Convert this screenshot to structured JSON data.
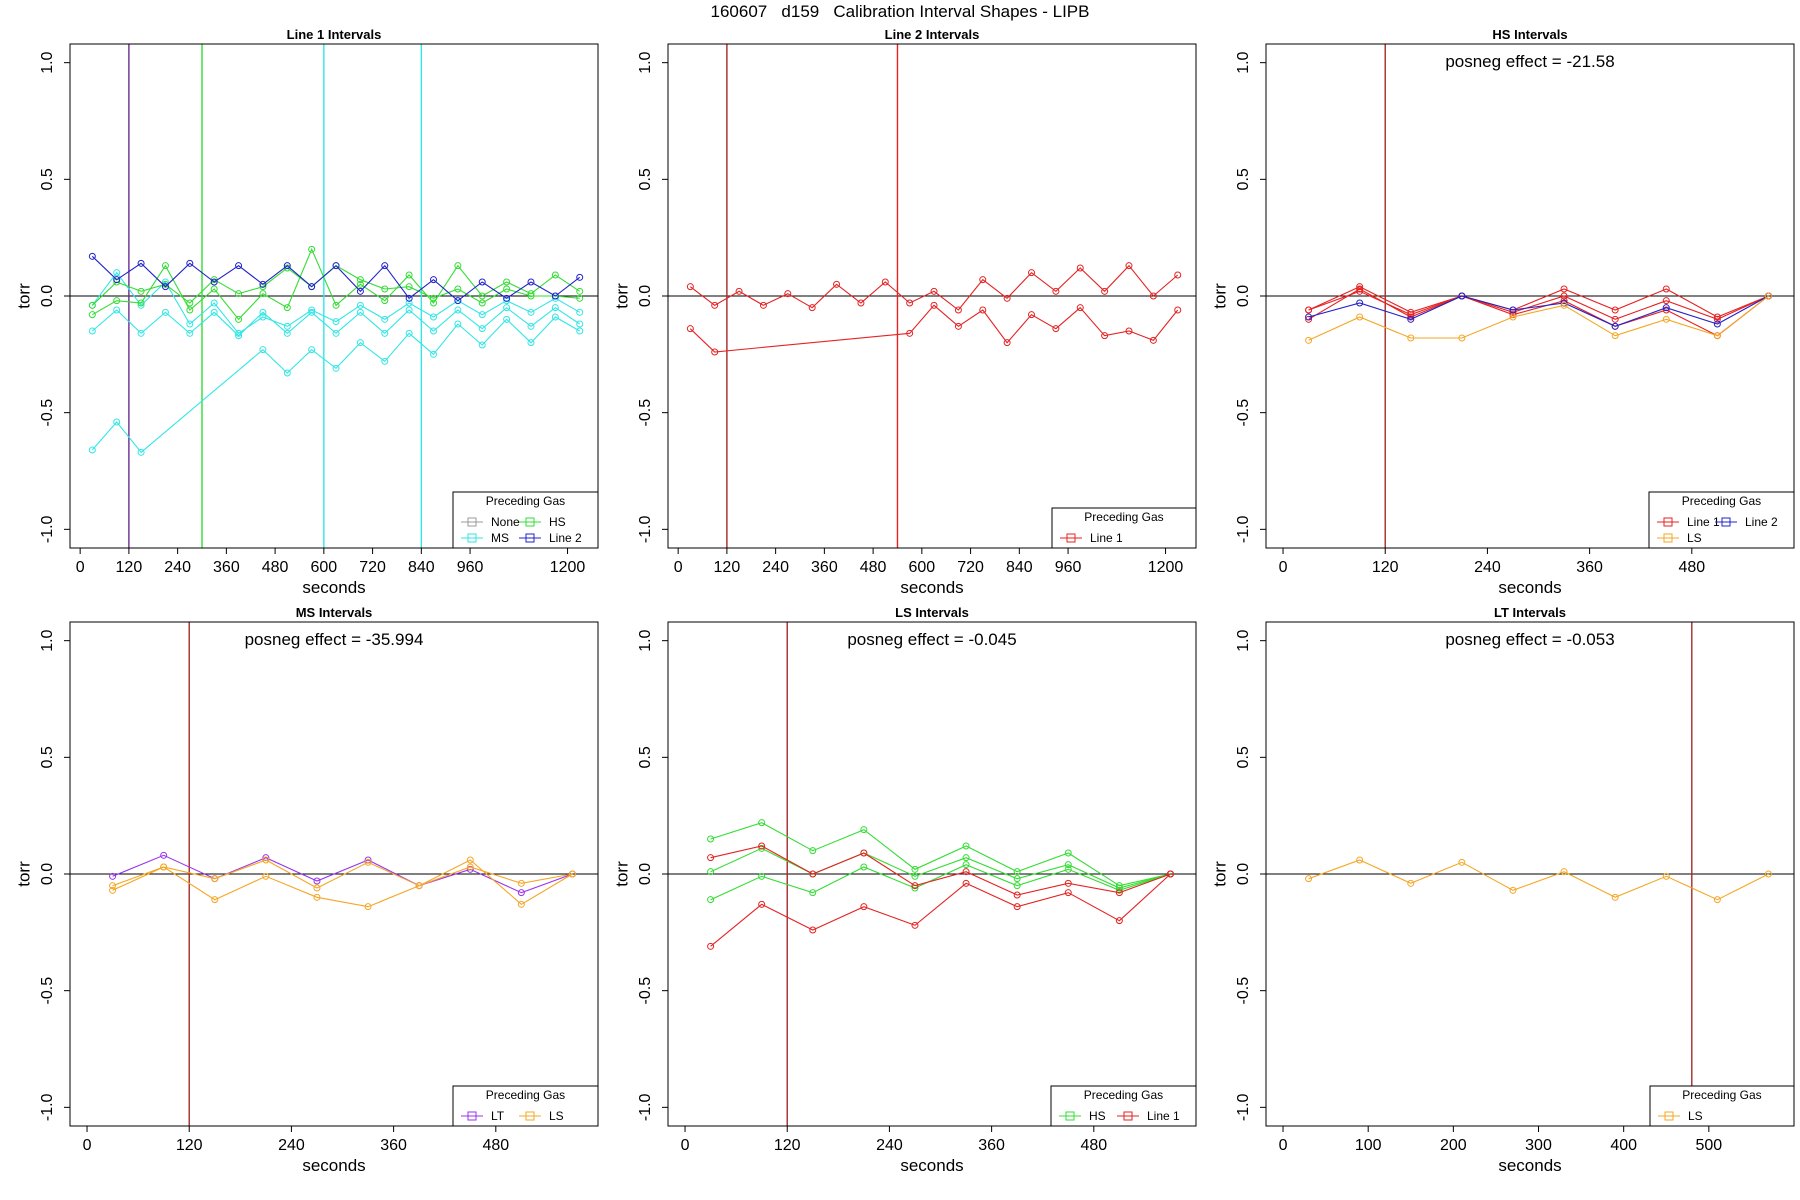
{
  "title": "160607   d159   Calibration Interval Shapes - LIPB",
  "colors": {
    "None": "#999999",
    "MS": "#33e6e6",
    "HS": "#33dd33",
    "Line 2": "#2222cc",
    "Line 1": "#e62222",
    "LS": "#f5a623",
    "LT": "#9933ee",
    "purple_line": "#6b2b8f",
    "darkred_line": "#a52a2a"
  },
  "chart_data": [
    {
      "type": "line",
      "title": "Line 1 Intervals",
      "xlabel": "seconds",
      "ylabel": "torr",
      "xlim": [
        -25,
        1275
      ],
      "ylim": [
        -1.08,
        1.08
      ],
      "xticks": [
        0,
        120,
        240,
        360,
        480,
        600,
        720,
        840,
        960,
        1200
      ],
      "yticks": [
        -1.0,
        -0.5,
        0.0,
        0.5,
        1.0
      ],
      "vlines": [
        {
          "x": 120,
          "color": "purple_line"
        },
        {
          "x": 300,
          "color": "HS"
        },
        {
          "x": 600,
          "color": "MS"
        },
        {
          "x": 840,
          "color": "MS"
        }
      ],
      "legend": {
        "title": "Preceding Gas",
        "position": "bottom-right",
        "columns": 2,
        "items": [
          "None",
          "HS",
          "MS",
          "Line 2"
        ]
      },
      "series": [
        {
          "name": "MS",
          "x": [
            30,
            90,
            150,
            450,
            510,
            570,
            630,
            690,
            750,
            810,
            870,
            930,
            990,
            1050,
            1110,
            1170,
            1230
          ],
          "y": [
            -0.66,
            -0.54,
            -0.67,
            -0.23,
            -0.33,
            -0.23,
            -0.31,
            -0.2,
            -0.28,
            -0.16,
            -0.25,
            -0.12,
            -0.21,
            -0.1,
            -0.2,
            -0.09,
            -0.15
          ]
        },
        {
          "name": "MS",
          "x": [
            30,
            90,
            150,
            210,
            270,
            330,
            390,
            450,
            510,
            570,
            630,
            690,
            750,
            810,
            870,
            930,
            990,
            1050,
            1110,
            1170,
            1230
          ],
          "y": [
            -0.15,
            -0.06,
            -0.16,
            -0.07,
            -0.16,
            -0.07,
            -0.17,
            -0.07,
            -0.16,
            -0.07,
            -0.16,
            -0.07,
            -0.16,
            -0.06,
            -0.15,
            -0.06,
            -0.14,
            -0.05,
            -0.13,
            -0.05,
            -0.12
          ]
        },
        {
          "name": "MS",
          "x": [
            30,
            90,
            150,
            210,
            270,
            330,
            390,
            450,
            510,
            570,
            630,
            690,
            750,
            810,
            870,
            930,
            990,
            1050,
            1110,
            1170,
            1230
          ],
          "y": [
            -0.04,
            0.1,
            -0.04,
            0.06,
            -0.12,
            -0.03,
            -0.16,
            -0.09,
            -0.13,
            -0.06,
            -0.11,
            -0.04,
            -0.1,
            -0.03,
            -0.09,
            -0.02,
            -0.08,
            -0.02,
            -0.07,
            -0.01,
            -0.07
          ]
        },
        {
          "name": "HS",
          "x": [
            30,
            90,
            150,
            210,
            270,
            330,
            390,
            450,
            510,
            570,
            630,
            690,
            750,
            810,
            870,
            930,
            990,
            1050,
            1110,
            1170,
            1230
          ],
          "y": [
            -0.08,
            -0.02,
            -0.03,
            0.13,
            -0.06,
            0.03,
            -0.1,
            0.01,
            -0.05,
            0.2,
            -0.04,
            0.05,
            -0.02,
            0.09,
            -0.03,
            0.13,
            0.0,
            0.06,
            0.01,
            0.09,
            0.02
          ]
        },
        {
          "name": "HS",
          "x": [
            30,
            90,
            150,
            210,
            270,
            330,
            390,
            450,
            510,
            570,
            630,
            690,
            750,
            810,
            870,
            930,
            990,
            1050,
            1110,
            1170,
            1230
          ],
          "y": [
            -0.04,
            0.06,
            0.02,
            0.05,
            -0.03,
            0.07,
            0.01,
            0.04,
            0.12,
            0.04,
            0.13,
            0.07,
            0.03,
            0.04,
            -0.01,
            0.03,
            -0.03,
            0.03,
            0.0,
            0.0,
            -0.01
          ]
        },
        {
          "name": "Line 2",
          "x": [
            30,
            90,
            150,
            210,
            270,
            330,
            390,
            450,
            510,
            570,
            630,
            690,
            750,
            810,
            870,
            930,
            990,
            1050,
            1110,
            1170,
            1230
          ],
          "y": [
            0.17,
            0.07,
            0.14,
            0.04,
            0.14,
            0.06,
            0.13,
            0.05,
            0.13,
            0.04,
            0.13,
            0.02,
            0.13,
            -0.01,
            0.07,
            -0.02,
            0.06,
            -0.01,
            0.06,
            0.0,
            0.08
          ]
        }
      ]
    },
    {
      "type": "line",
      "title": "Line 2 Intervals",
      "xlabel": "seconds",
      "ylabel": "torr",
      "xlim": [
        -25,
        1275
      ],
      "ylim": [
        -1.08,
        1.08
      ],
      "xticks": [
        0,
        120,
        240,
        360,
        480,
        600,
        720,
        840,
        960,
        1200
      ],
      "yticks": [
        -1.0,
        -0.5,
        0.0,
        0.5,
        1.0
      ],
      "vlines": [
        {
          "x": 120,
          "color": "darkred_line"
        },
        {
          "x": 540,
          "color": "Line 1"
        }
      ],
      "legend": {
        "title": "Preceding Gas",
        "position": "bottom-right",
        "columns": 1,
        "items": [
          "Line 1"
        ]
      },
      "series": [
        {
          "name": "Line 1",
          "x": [
            30,
            90,
            150,
            210,
            270,
            330,
            390,
            450,
            510,
            570,
            630,
            690,
            750,
            810,
            870,
            930,
            990,
            1050,
            1110,
            1170,
            1230
          ],
          "y": [
            0.04,
            -0.04,
            0.02,
            -0.04,
            0.01,
            -0.05,
            0.05,
            -0.03,
            0.06,
            -0.03,
            0.02,
            -0.06,
            0.07,
            -0.01,
            0.1,
            0.02,
            0.12,
            0.02,
            0.13,
            0.0,
            0.09
          ]
        },
        {
          "name": "Line 1",
          "x": [
            30,
            90,
            570,
            630,
            690,
            750,
            810,
            870,
            930,
            990,
            1050,
            1110,
            1170,
            1230
          ],
          "y": [
            -0.14,
            -0.24,
            -0.16,
            -0.04,
            -0.13,
            -0.06,
            -0.2,
            -0.08,
            -0.14,
            -0.05,
            -0.17,
            -0.15,
            -0.19,
            -0.06
          ]
        }
      ]
    },
    {
      "type": "line",
      "title": "HS Intervals",
      "annotation": "posneg effect = -21.58",
      "xlabel": "seconds",
      "ylabel": "torr",
      "xlim": [
        -20,
        600
      ],
      "ylim": [
        -1.08,
        1.08
      ],
      "xticks": [
        0,
        120,
        240,
        360,
        480
      ],
      "yticks": [
        -1.0,
        -0.5,
        0.0,
        0.5,
        1.0
      ],
      "vlines": [
        {
          "x": 120,
          "color": "darkred_line"
        }
      ],
      "legend": {
        "title": "Preceding Gas",
        "position": "bottom-right",
        "columns": 2,
        "items": [
          "Line 1",
          "Line 2",
          "LS"
        ]
      },
      "series": [
        {
          "name": "Line 1",
          "x": [
            30,
            90,
            150,
            210,
            270,
            330,
            390,
            450,
            510,
            570
          ],
          "y": [
            -0.06,
            0.04,
            -0.07,
            0.0,
            -0.06,
            0.03,
            -0.06,
            0.03,
            -0.09,
            0.0
          ]
        },
        {
          "name": "Line 1",
          "x": [
            30,
            90,
            150,
            210,
            270,
            330,
            390,
            450,
            510,
            570
          ],
          "y": [
            -0.06,
            0.02,
            -0.08,
            0.0,
            -0.07,
            0.0,
            -0.1,
            -0.02,
            -0.1,
            0.0
          ]
        },
        {
          "name": "Line 1",
          "x": [
            30,
            90,
            150,
            210,
            270,
            330,
            390,
            450,
            510,
            570
          ],
          "y": [
            -0.1,
            0.03,
            -0.09,
            0.0,
            -0.08,
            -0.02,
            -0.13,
            -0.06,
            -0.17,
            0.0
          ]
        },
        {
          "name": "Line 2",
          "x": [
            30,
            90,
            150,
            210,
            270,
            330,
            390,
            450,
            510,
            570
          ],
          "y": [
            -0.09,
            -0.03,
            -0.1,
            0.0,
            -0.06,
            -0.03,
            -0.13,
            -0.05,
            -0.12,
            0.0
          ]
        },
        {
          "name": "LS",
          "x": [
            30,
            90,
            150,
            210,
            270,
            330,
            390,
            450,
            510,
            570
          ],
          "y": [
            -0.19,
            -0.09,
            -0.18,
            -0.18,
            -0.09,
            -0.04,
            -0.17,
            -0.1,
            -0.17,
            0.0
          ]
        }
      ]
    },
    {
      "type": "line",
      "title": "MS Intervals",
      "annotation": "posneg effect = -35.994",
      "xlabel": "seconds",
      "ylabel": "torr",
      "xlim": [
        -20,
        600
      ],
      "ylim": [
        -1.08,
        1.08
      ],
      "xticks": [
        0,
        120,
        240,
        360,
        480
      ],
      "yticks": [
        -1.0,
        -0.5,
        0.0,
        0.5,
        1.0
      ],
      "vlines": [
        {
          "x": 120,
          "color": "darkred_line"
        }
      ],
      "legend": {
        "title": "Preceding Gas",
        "position": "bottom-right",
        "columns": 2,
        "items": [
          "LT",
          "LS"
        ]
      },
      "series": [
        {
          "name": "LT",
          "x": [
            30,
            90,
            150,
            210,
            270,
            330,
            390,
            450,
            510,
            570
          ],
          "y": [
            -0.01,
            0.08,
            -0.02,
            0.07,
            -0.03,
            0.06,
            -0.05,
            0.02,
            -0.08,
            0.0
          ]
        },
        {
          "name": "LS",
          "x": [
            30,
            90,
            150,
            210,
            270,
            330,
            390,
            450,
            510,
            570
          ],
          "y": [
            -0.07,
            0.03,
            -0.11,
            -0.01,
            -0.1,
            -0.14,
            -0.05,
            0.06,
            -0.13,
            0.0
          ]
        },
        {
          "name": "LS",
          "x": [
            30,
            90,
            150,
            210,
            270,
            330,
            390,
            450,
            510,
            570
          ],
          "y": [
            -0.05,
            0.03,
            -0.02,
            0.06,
            -0.06,
            0.05,
            -0.05,
            0.03,
            -0.04,
            0.0
          ]
        }
      ]
    },
    {
      "type": "line",
      "title": "LS Intervals",
      "annotation": "posneg effect = -0.045",
      "xlabel": "seconds",
      "ylabel": "torr",
      "xlim": [
        -20,
        600
      ],
      "ylim": [
        -1.08,
        1.08
      ],
      "xticks": [
        0,
        120,
        240,
        360,
        480
      ],
      "yticks": [
        -1.0,
        -0.5,
        0.0,
        0.5,
        1.0
      ],
      "vlines": [
        {
          "x": 120,
          "color": "darkred_line"
        }
      ],
      "legend": {
        "title": "Preceding Gas",
        "position": "bottom-right",
        "columns": 2,
        "items": [
          "HS",
          "Line 1"
        ]
      },
      "series": [
        {
          "name": "HS",
          "x": [
            30,
            90,
            150,
            210,
            270,
            330,
            390,
            450,
            510,
            570
          ],
          "y": [
            0.15,
            0.22,
            0.1,
            0.19,
            0.02,
            0.12,
            0.01,
            0.09,
            -0.05,
            0.0
          ]
        },
        {
          "name": "HS",
          "x": [
            30,
            90,
            150,
            210,
            270,
            330,
            390,
            450,
            510,
            570
          ],
          "y": [
            0.01,
            0.11,
            0.0,
            0.09,
            -0.01,
            0.07,
            -0.02,
            0.04,
            -0.06,
            0.0
          ]
        },
        {
          "name": "HS",
          "x": [
            30,
            90,
            150,
            210,
            270,
            330,
            390,
            450,
            510,
            570
          ],
          "y": [
            -0.11,
            -0.01,
            -0.08,
            0.03,
            -0.06,
            0.04,
            -0.05,
            0.02,
            -0.07,
            0.0
          ]
        },
        {
          "name": "Line 1",
          "x": [
            30,
            90,
            150,
            210,
            270,
            330,
            390,
            450,
            510,
            570
          ],
          "y": [
            0.07,
            0.12,
            0.0,
            0.09,
            -0.05,
            0.01,
            -0.09,
            -0.04,
            -0.08,
            0.0
          ]
        },
        {
          "name": "Line 1",
          "x": [
            30,
            90,
            150,
            210,
            270,
            330,
            390,
            450,
            510,
            570
          ],
          "y": [
            -0.31,
            -0.13,
            -0.24,
            -0.14,
            -0.22,
            -0.04,
            -0.14,
            -0.08,
            -0.2,
            0.0
          ]
        }
      ]
    },
    {
      "type": "line",
      "title": "LT Intervals",
      "annotation": "posneg effect = -0.053",
      "xlabel": "seconds",
      "ylabel": "torr",
      "xlim": [
        -20,
        600
      ],
      "ylim": [
        -1.08,
        1.08
      ],
      "xticks": [
        0,
        100,
        200,
        300,
        400,
        500
      ],
      "yticks": [
        -1.0,
        -0.5,
        0.0,
        0.5,
        1.0
      ],
      "vlines": [
        {
          "x": 480,
          "color": "darkred_line"
        }
      ],
      "legend": {
        "title": "Preceding Gas",
        "position": "bottom-right",
        "columns": 1,
        "items": [
          "LS"
        ]
      },
      "series": [
        {
          "name": "LS",
          "x": [
            30,
            90,
            150,
            210,
            270,
            330,
            390,
            450,
            510,
            570
          ],
          "y": [
            -0.02,
            0.06,
            -0.04,
            0.05,
            -0.07,
            0.01,
            -0.1,
            -0.01,
            -0.11,
            0.0
          ]
        }
      ]
    }
  ]
}
